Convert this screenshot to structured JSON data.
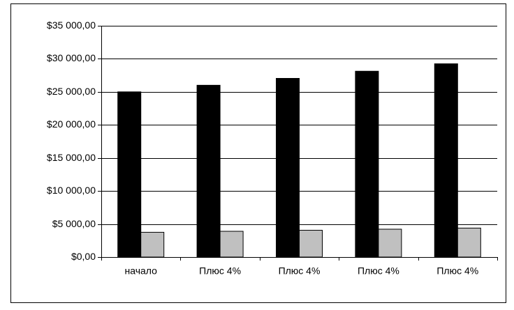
{
  "chart_data": {
    "type": "bar",
    "categories": [
      "начало",
      "Плюс 4%",
      "Плюс 4%",
      "Плюс 4%",
      "Плюс 4%"
    ],
    "series": [
      {
        "color": "#000000",
        "values": [
          25000,
          26000,
          27040,
          28122,
          29246
        ]
      },
      {
        "color": "#c0c0c0",
        "values": [
          3750,
          3900,
          4056,
          4218,
          4387
        ]
      }
    ],
    "ylim": [
      0,
      35000
    ],
    "yticks": [
      {
        "value": 0,
        "label": "$0,00"
      },
      {
        "value": 5000,
        "label": "$5 000,00"
      },
      {
        "value": 10000,
        "label": "$10 000,00"
      },
      {
        "value": 15000,
        "label": "$15 000,00"
      },
      {
        "value": 20000,
        "label": "$20 000,00"
      },
      {
        "value": 25000,
        "label": "$25 000,00"
      },
      {
        "value": 30000,
        "label": "$30 000,00"
      },
      {
        "value": 35000,
        "label": "$35 000,00"
      }
    ],
    "grid": true
  }
}
